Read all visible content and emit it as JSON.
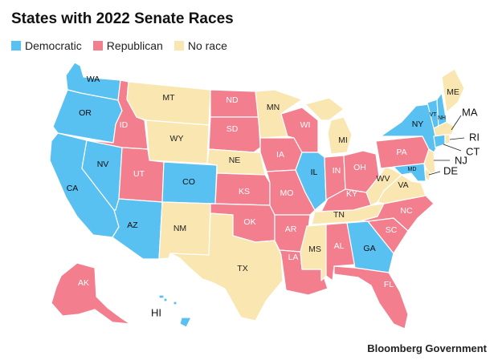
{
  "title": "States with 2022 Senate Races",
  "legend": [
    {
      "key": "D",
      "label": "Democratic",
      "color": "#59c0f2"
    },
    {
      "key": "R",
      "label": "Republican",
      "color": "#f37e8e"
    },
    {
      "key": "N",
      "label": "No race",
      "color": "#fae6b1"
    }
  ],
  "credit": "Bloomberg Government",
  "states": {
    "WA": "D",
    "OR": "D",
    "CA": "D",
    "NV": "D",
    "AZ": "D",
    "CO": "D",
    "IL": "D",
    "NY": "D",
    "VT": "D",
    "NH": "D",
    "CT": "D",
    "MD": "D",
    "GA": "D",
    "HI": "D",
    "ID": "R",
    "UT": "R",
    "ND": "R",
    "SD": "R",
    "KS": "R",
    "OK": "R",
    "IA": "R",
    "MO": "R",
    "AR": "R",
    "LA": "R",
    "WI": "R",
    "IN": "R",
    "OH": "R",
    "KY": "R",
    "PA": "R",
    "NC": "R",
    "SC": "R",
    "AL": "R",
    "FL": "R",
    "AK": "R",
    "MT": "N",
    "WY": "N",
    "NE": "N",
    "NM": "N",
    "TX": "N",
    "MN": "N",
    "MI": "N",
    "MS": "N",
    "TN": "N",
    "WV": "N",
    "VA": "N",
    "ME": "N",
    "MA": "N",
    "RI": "N",
    "NJ": "N",
    "DE": "N"
  }
}
